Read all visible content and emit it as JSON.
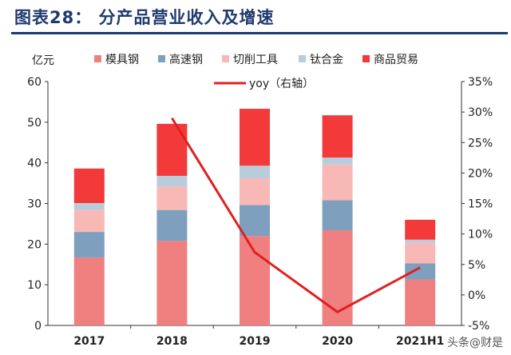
{
  "header": {
    "title": "图表28：  分产品营业收入及增速"
  },
  "watermark": "头条@财是",
  "chart_data": {
    "type": "bar",
    "stacked": true,
    "categories": [
      "2017",
      "2018",
      "2019",
      "2020",
      "2021H1"
    ],
    "y_left_unit": "亿元",
    "ylim": [
      0,
      60
    ],
    "y_ticks": [
      0,
      10,
      20,
      30,
      40,
      50,
      60
    ],
    "y2lim": [
      -5,
      35
    ],
    "y2_ticks": [
      "-5%",
      "0%",
      "5%",
      "10%",
      "15%",
      "20%",
      "25%",
      "30%",
      "35%"
    ],
    "series": [
      {
        "name": "模具钢",
        "color": "#f07f7f",
        "values": [
          16.7,
          20.8,
          22.0,
          23.4,
          11.3
        ]
      },
      {
        "name": "高速钢",
        "color": "#7e9fbd",
        "values": [
          6.3,
          7.6,
          7.6,
          7.4,
          4.0
        ]
      },
      {
        "name": "切削工具",
        "color": "#f8b8b6",
        "values": [
          5.4,
          5.8,
          6.6,
          8.8,
          5.0
        ]
      },
      {
        "name": "钛合金",
        "color": "#b9ccdc",
        "values": [
          1.7,
          2.6,
          3.1,
          1.7,
          0.8
        ]
      },
      {
        "name": "商品贸易",
        "color": "#f23a3a",
        "values": [
          8.5,
          12.8,
          14.0,
          10.4,
          4.9
        ]
      }
    ],
    "line": {
      "name": "yoy（右轴）",
      "color": "#e02020",
      "x_indices": [
        1,
        2,
        3,
        4
      ],
      "values": [
        29.0,
        7.0,
        -2.8,
        4.5
      ]
    },
    "legend_position": "top"
  }
}
